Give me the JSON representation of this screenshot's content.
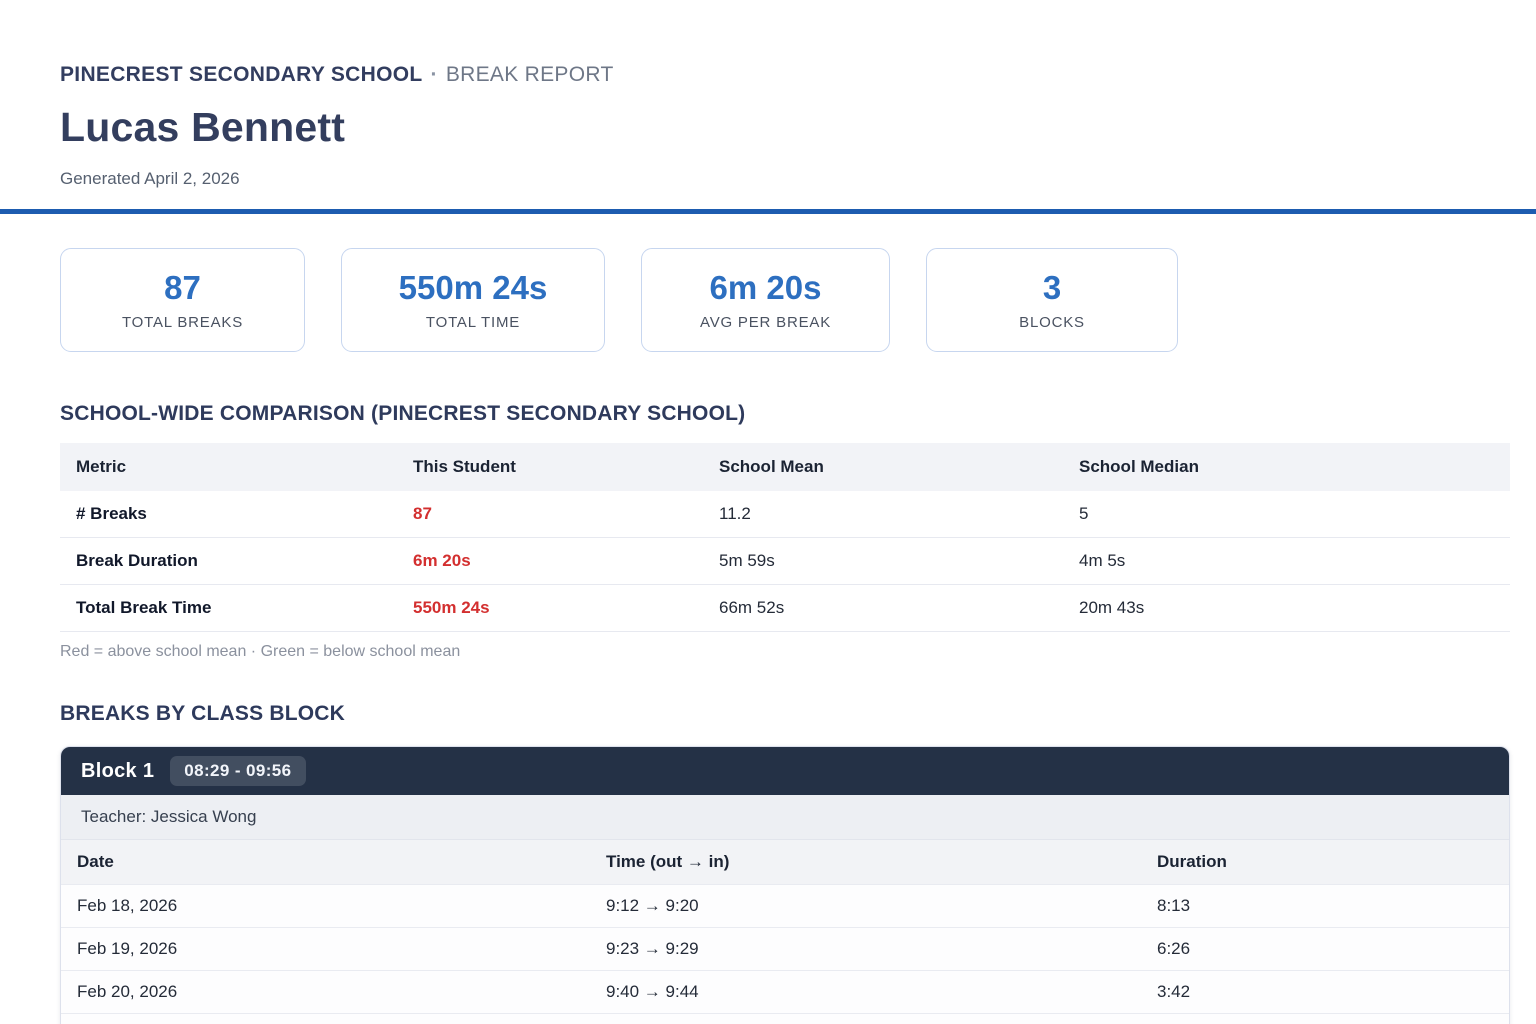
{
  "report": {
    "school_name": "PINECREST SECONDARY SCHOOL",
    "dot": "·",
    "report_type": "BREAK REPORT",
    "student_name": "Lucas Bennett",
    "generated": "Generated April 2, 2026"
  },
  "stats": [
    {
      "value": "87",
      "label": "TOTAL BREAKS"
    },
    {
      "value": "550m 24s",
      "label": "TOTAL TIME"
    },
    {
      "value": "6m 20s",
      "label": "AVG PER BREAK"
    },
    {
      "value": "3",
      "label": "BLOCKS"
    }
  ],
  "comparison": {
    "title": "SCHOOL-WIDE COMPARISON (PINECREST SECONDARY SCHOOL)",
    "headers": [
      "Metric",
      "This Student",
      "School Mean",
      "School Median"
    ],
    "rows": [
      {
        "metric": "# Breaks",
        "student": "87",
        "mean": "11.2",
        "median": "5",
        "student_status": "above-mean"
      },
      {
        "metric": "Break Duration",
        "student": "6m 20s",
        "mean": "5m 59s",
        "median": "4m 5s",
        "student_status": "above-mean"
      },
      {
        "metric": "Total Break Time",
        "student": "550m 24s",
        "mean": "66m 52s",
        "median": "20m 43s",
        "student_status": "above-mean"
      }
    ],
    "legend": "Red = above school mean · Green = below school mean"
  },
  "blocks_section": {
    "title": "BREAKS BY CLASS BLOCK",
    "blocks": [
      {
        "name": "Block 1",
        "time_range": "08:29 - 09:56",
        "teacher": "Teacher: Jessica Wong",
        "headers": [
          "Date",
          "Time (out → in)",
          "Duration"
        ],
        "rows": [
          {
            "date": "Feb 18, 2026",
            "time": "9:12 → 9:20",
            "duration": "8:13"
          },
          {
            "date": "Feb 19, 2026",
            "time": "9:23 → 9:29",
            "duration": "6:26"
          },
          {
            "date": "Feb 20, 2026",
            "time": "9:40 → 9:44",
            "duration": "3:42"
          }
        ]
      }
    ]
  },
  "colors": {
    "accent_blue": "#2d6fc0",
    "divider_blue": "#1d5cb0",
    "above_mean_red": "#d32f2f",
    "heading_navy": "#333e5e",
    "block_header_bg": "#243146"
  }
}
